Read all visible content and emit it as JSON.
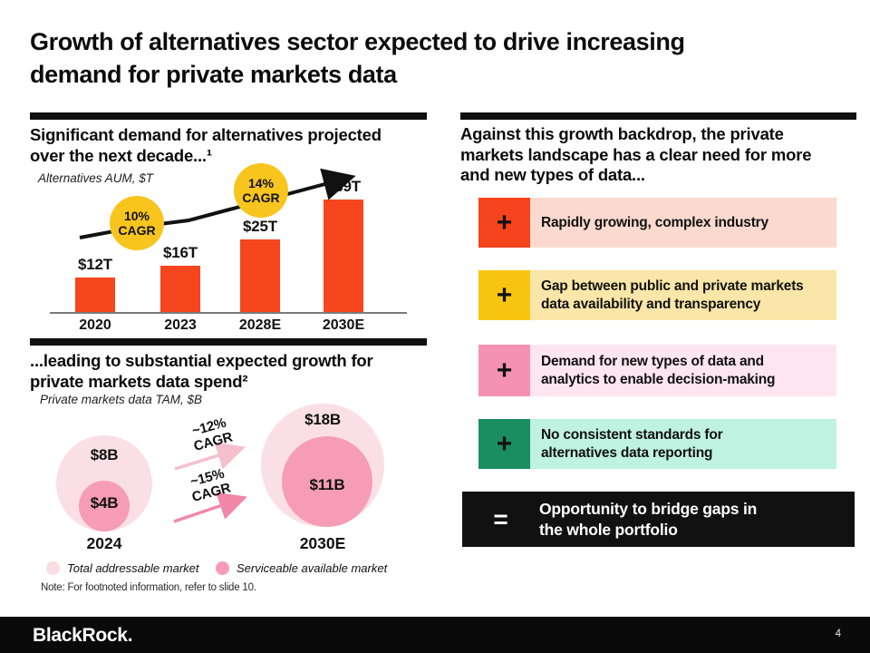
{
  "slide": {
    "title": "Growth of alternatives sector expected to drive increasing\ndemand for private markets data",
    "note": "Note: For footnoted information, refer to slide 10.",
    "footer": {
      "logo": "BlackRock.",
      "page_number": "4"
    }
  },
  "left": {
    "heading_top": "Significant demand for alternatives projected\nover the next decade...¹",
    "heading_bottom": "...leading to substantial expected growth for\nprivate markets data spend²",
    "legend": {
      "tam_label": "Total addressable market",
      "sam_label": "Serviceable available market",
      "tam_color": "#FADCE4",
      "sam_color": "#F79CB6"
    }
  },
  "right": {
    "heading": "Against this growth backdrop, the private\nmarkets landscape has a clear need for more\nand new types of data...",
    "rows": [
      {
        "symbol": "+",
        "text": "Rapidly growing, complex industry",
        "icon_color": "#F5431D",
        "bg_color": "#FBD9CE"
      },
      {
        "symbol": "+",
        "text": "Gap between public and private markets\ndata availability and transparency",
        "icon_color": "#F9C513",
        "bg_color": "#FAE6A8"
      },
      {
        "symbol": "+",
        "text": "Demand for new types of data and\nanalytics to enable decision-making",
        "icon_color": "#F591B2",
        "bg_color": "#FDE6F0"
      },
      {
        "symbol": "+",
        "text": "No consistent standards for\nalternatives data reporting",
        "icon_color": "#1A8E60",
        "bg_color": "#BFF2E0"
      }
    ],
    "result_row": {
      "symbol": "=",
      "text": "Opportunity to bridge gaps in\nthe whole portfolio",
      "bg_color": "#111111",
      "text_color": "#FFFFFF"
    }
  },
  "chart_data": [
    {
      "type": "bar",
      "title": "Significant demand for alternatives projected over the next decade...",
      "unit_label": "Alternatives AUM, $T",
      "categories": [
        "2020",
        "2023",
        "2028E",
        "2030E"
      ],
      "values": [
        12,
        16,
        25,
        39
      ],
      "value_labels": [
        "$12T",
        "$16T",
        "$25T",
        "$39T"
      ],
      "bar_color": "#F5461D",
      "annotation_color": "#F7C51E",
      "trend_arrow_color": "#111111",
      "annotations": [
        {
          "label": "10%\nCAGR",
          "between": [
            "2020",
            "2023"
          ]
        },
        {
          "label": "14%\nCAGR",
          "between": [
            "2028E",
            "2030E"
          ]
        }
      ],
      "ylim": [
        0,
        45
      ],
      "grid": false
    },
    {
      "type": "bubble",
      "title": "...leading to substantial expected growth for private markets data spend",
      "unit_label": "Private markets data TAM, $B",
      "outer_color": "#FBDFE6",
      "inner_color": "#F79CB6",
      "groups": [
        {
          "category": "2024",
          "total_addressable_market": 8,
          "serviceable_available_market": 4,
          "tam_label": "$8B",
          "sam_label": "$4B"
        },
        {
          "category": "2030E",
          "total_addressable_market": 18,
          "serviceable_available_market": 11,
          "tam_label": "$18B",
          "sam_label": "$11B"
        }
      ],
      "arrows": [
        {
          "label": "~12%\nCAGR",
          "color": "#F6BFCE"
        },
        {
          "label": "~15%\nCAGR",
          "color": "#F287A9"
        }
      ],
      "legend": [
        "Total addressable market",
        "Serviceable available market"
      ],
      "legend_position": "bottom"
    }
  ]
}
